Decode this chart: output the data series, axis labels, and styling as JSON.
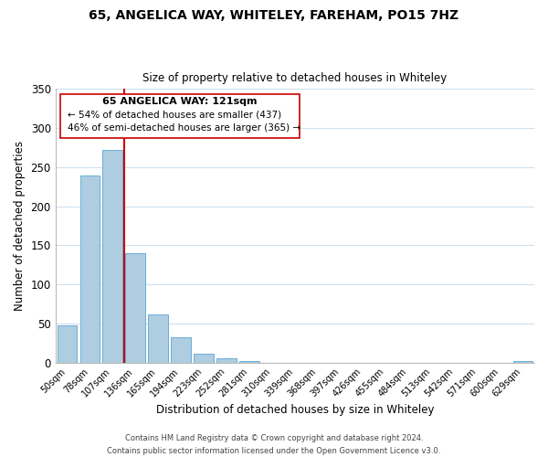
{
  "title": "65, ANGELICA WAY, WHITELEY, FAREHAM, PO15 7HZ",
  "subtitle": "Size of property relative to detached houses in Whiteley",
  "xlabel": "Distribution of detached houses by size in Whiteley",
  "ylabel": "Number of detached properties",
  "bar_labels": [
    "50sqm",
    "78sqm",
    "107sqm",
    "136sqm",
    "165sqm",
    "194sqm",
    "223sqm",
    "252sqm",
    "281sqm",
    "310sqm",
    "339sqm",
    "368sqm",
    "397sqm",
    "426sqm",
    "455sqm",
    "484sqm",
    "513sqm",
    "542sqm",
    "571sqm",
    "600sqm",
    "629sqm"
  ],
  "bar_values": [
    47,
    239,
    272,
    140,
    61,
    32,
    11,
    5,
    2,
    0,
    0,
    0,
    0,
    0,
    0,
    0,
    0,
    0,
    0,
    0,
    2
  ],
  "bar_color": "#aecde1",
  "bar_edge_color": "#6aaed6",
  "vline_idx": 2,
  "vline_color": "#cc0000",
  "ylim": [
    0,
    350
  ],
  "yticks": [
    0,
    50,
    100,
    150,
    200,
    250,
    300,
    350
  ],
  "annotation_title": "65 ANGELICA WAY: 121sqm",
  "annotation_line1": "← 54% of detached houses are smaller (437)",
  "annotation_line2": "46% of semi-detached houses are larger (365) →",
  "footer_line1": "Contains HM Land Registry data © Crown copyright and database right 2024.",
  "footer_line2": "Contains public sector information licensed under the Open Government Licence v3.0.",
  "background_color": "#ffffff",
  "grid_color": "#cfe0ef"
}
